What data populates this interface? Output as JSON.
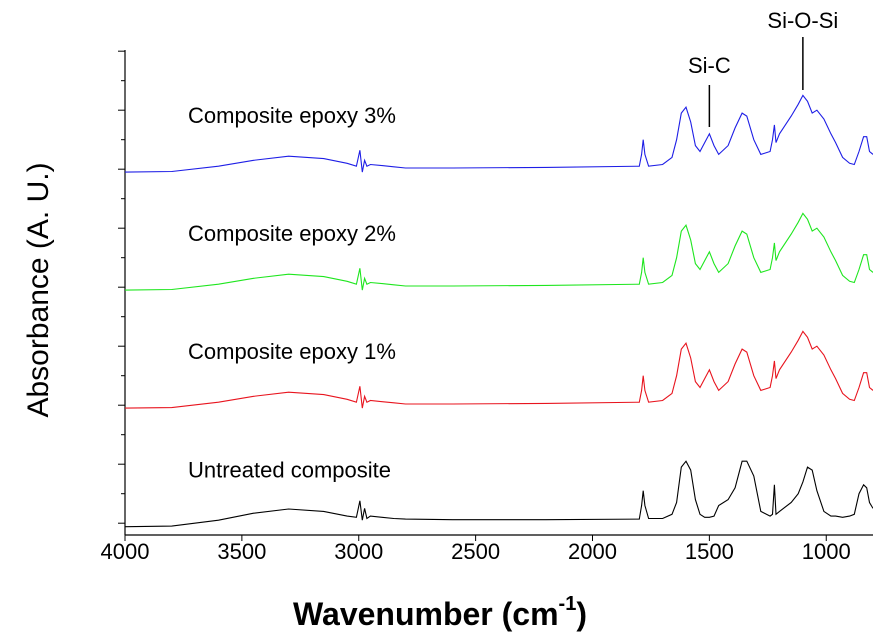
{
  "chart_data": {
    "type": "line",
    "x_label": {
      "main": "Wavenumber (cm",
      "sup": "-1",
      "close": ")"
    },
    "y_label": "Absorbance (A. U.)",
    "xlim": [
      4000,
      800
    ],
    "xticks": [
      4000,
      3500,
      3000,
      2500,
      2000,
      1500,
      1000
    ],
    "ylim": [
      -0.2,
      8.02
    ],
    "yticks": [
      0,
      1,
      2,
      3,
      4,
      5,
      6,
      7,
      8
    ],
    "yminorticks": [
      0.5,
      1.5,
      2.5,
      3.5,
      4.5,
      5.5,
      6.5,
      7.5
    ],
    "x": [
      4000,
      3800,
      3600,
      3450,
      3300,
      3150,
      3050,
      3010,
      2995,
      2985,
      2975,
      2965,
      2950,
      2900,
      2850,
      2800,
      2600,
      2200,
      1800,
      1790,
      1783,
      1776,
      1760,
      1700,
      1660,
      1640,
      1620,
      1600,
      1580,
      1560,
      1540,
      1520,
      1500,
      1480,
      1460,
      1420,
      1390,
      1360,
      1340,
      1310,
      1280,
      1240,
      1230,
      1222,
      1215,
      1200,
      1150,
      1120,
      1100,
      1080,
      1060,
      1040,
      1010,
      980,
      960,
      930,
      900,
      880,
      860,
      840,
      827,
      815,
      800
    ],
    "series": [
      {
        "name": "Untreated composite",
        "color": "#000000",
        "values": [
          -0.06,
          -0.05,
          0.05,
          0.17,
          0.24,
          0.2,
          0.12,
          0.1,
          0.38,
          0.05,
          0.25,
          0.08,
          0.12,
          0.1,
          0.08,
          0.07,
          0.06,
          0.06,
          0.07,
          0.3,
          0.55,
          0.3,
          0.08,
          0.08,
          0.15,
          0.35,
          0.95,
          1.05,
          0.9,
          0.4,
          0.15,
          0.1,
          0.1,
          0.12,
          0.3,
          0.4,
          0.6,
          1.05,
          1.05,
          0.8,
          0.2,
          0.12,
          0.15,
          0.65,
          0.15,
          0.2,
          0.35,
          0.5,
          0.7,
          0.95,
          0.9,
          0.55,
          0.2,
          0.12,
          0.12,
          0.1,
          0.12,
          0.15,
          0.5,
          0.65,
          0.6,
          0.35,
          0.25
        ]
      },
      {
        "name": "Composite epoxy 1%",
        "color": "#e8141e",
        "values": [
          1.95,
          1.96,
          2.05,
          2.15,
          2.22,
          2.18,
          2.1,
          2.05,
          2.32,
          1.95,
          2.15,
          2.05,
          2.08,
          2.06,
          2.04,
          2.02,
          2.02,
          2.03,
          2.05,
          2.25,
          2.5,
          2.25,
          2.05,
          2.08,
          2.2,
          2.5,
          2.95,
          3.05,
          2.8,
          2.4,
          2.3,
          2.45,
          2.6,
          2.4,
          2.25,
          2.4,
          2.7,
          2.95,
          2.9,
          2.5,
          2.25,
          2.3,
          2.5,
          2.75,
          2.45,
          2.6,
          2.9,
          3.1,
          3.25,
          3.15,
          2.95,
          3.0,
          2.85,
          2.6,
          2.45,
          2.2,
          2.1,
          2.08,
          2.3,
          2.55,
          2.55,
          2.3,
          2.25
        ]
      },
      {
        "name": "Composite epoxy 2%",
        "color": "#1ee61e",
        "values": [
          3.95,
          3.96,
          4.05,
          4.15,
          4.22,
          4.18,
          4.1,
          4.05,
          4.32,
          3.95,
          4.15,
          4.05,
          4.08,
          4.06,
          4.04,
          4.02,
          4.02,
          4.03,
          4.05,
          4.25,
          4.5,
          4.25,
          4.05,
          4.08,
          4.2,
          4.5,
          4.95,
          5.05,
          4.8,
          4.4,
          4.3,
          4.45,
          4.6,
          4.4,
          4.25,
          4.4,
          4.7,
          4.95,
          4.9,
          4.5,
          4.25,
          4.3,
          4.5,
          4.75,
          4.45,
          4.6,
          4.9,
          5.1,
          5.25,
          5.15,
          4.95,
          5.0,
          4.85,
          4.6,
          4.45,
          4.2,
          4.1,
          4.08,
          4.3,
          4.55,
          4.55,
          4.3,
          4.25
        ]
      },
      {
        "name": "Composite epoxy 3%",
        "color": "#1e1ee6",
        "values": [
          5.95,
          5.96,
          6.05,
          6.15,
          6.22,
          6.18,
          6.1,
          6.05,
          6.32,
          5.95,
          6.15,
          6.05,
          6.08,
          6.06,
          6.04,
          6.02,
          6.02,
          6.03,
          6.05,
          6.25,
          6.5,
          6.25,
          6.05,
          6.08,
          6.2,
          6.5,
          6.95,
          7.05,
          6.8,
          6.4,
          6.3,
          6.45,
          6.6,
          6.4,
          6.25,
          6.4,
          6.7,
          6.95,
          6.9,
          6.5,
          6.25,
          6.3,
          6.5,
          6.75,
          6.45,
          6.6,
          6.9,
          7.1,
          7.25,
          7.15,
          6.95,
          7.0,
          6.85,
          6.6,
          6.45,
          6.2,
          6.1,
          6.08,
          6.3,
          6.55,
          6.55,
          6.3,
          6.25
        ]
      }
    ],
    "annotations": [
      {
        "text": "Si-C",
        "x": 1500
      },
      {
        "text": "Si-O-Si",
        "x": 1100
      }
    ]
  }
}
